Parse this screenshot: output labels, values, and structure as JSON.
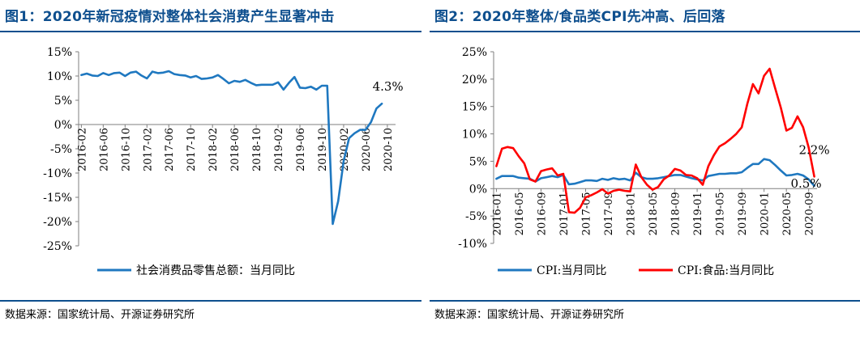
{
  "figures": [
    {
      "title": "图1：2020年新冠疫情对整体社会消费产生显著冲击",
      "source": "数据来源：国家统计局、开源证券研究所"
    },
    {
      "title": "图2：2020年整体/食品类CPI先冲高、后回落",
      "source": "数据来源：国家统计局、开源证券研究所"
    }
  ],
  "colors": {
    "title": "#0e4f8e",
    "blue": "#1f78c0",
    "red": "#ff0000",
    "axis": "#7f7f7f"
  },
  "chart_data": [
    {
      "type": "line",
      "title": "",
      "xlabel": "",
      "ylabel": "",
      "ylim": [
        -25,
        15
      ],
      "yticks": [
        15,
        10,
        5,
        0,
        -5,
        -10,
        -15,
        -20,
        -25
      ],
      "ytick_labels": [
        "15%",
        "10%",
        "5%",
        "0%",
        "-5%",
        "-10%",
        "-15%",
        "-20%",
        "-25%"
      ],
      "x_start": "2016-02",
      "x_end": "2020-11",
      "xtick_labels": [
        "2016-02",
        "2016-06",
        "2016-10",
        "2017-02",
        "2017-06",
        "2017-10",
        "2018-02",
        "2018-06",
        "2018-10",
        "2019-02",
        "2019-06",
        "2019-10",
        "2020-02",
        "2020-06",
        "2020-10"
      ],
      "legend_position": "bottom",
      "annotations": [
        {
          "text": "4.3%",
          "x": "2020-11",
          "y": 4.3
        }
      ],
      "series": [
        {
          "name": "社会消费品零售总额：当月同比",
          "color": "#1f78c0",
          "values": [
            10.2,
            10.5,
            10.1,
            10.0,
            10.6,
            10.2,
            10.6,
            10.7,
            10.0,
            10.7,
            10.9,
            10.1,
            9.5,
            10.9,
            10.6,
            10.7,
            11.0,
            10.4,
            10.2,
            10.1,
            9.7,
            10.0,
            9.4,
            9.5,
            9.7,
            10.2,
            9.4,
            8.5,
            9.0,
            8.8,
            9.2,
            8.6,
            8.1,
            8.2,
            8.2,
            8.2,
            8.7,
            7.2,
            8.6,
            9.8,
            7.6,
            7.5,
            7.8,
            7.2,
            8.0,
            8.0,
            -20.5,
            -15.8,
            -7.5,
            -2.8,
            -1.8,
            -1.1,
            -1.1,
            0.5,
            3.3,
            4.3
          ]
        }
      ]
    },
    {
      "type": "line",
      "title": "",
      "xlabel": "",
      "ylabel": "",
      "ylim": [
        -10,
        25
      ],
      "yticks": [
        25,
        20,
        15,
        10,
        5,
        0,
        -5,
        -10
      ],
      "ytick_labels": [
        "25%",
        "20%",
        "15%",
        "10%",
        "5%",
        "0%",
        "-5%",
        "-10%"
      ],
      "x_start": "2016-01",
      "x_end": "2020-10",
      "xtick_labels": [
        "2016-01",
        "2016-05",
        "2016-09",
        "2017-01",
        "2017-05",
        "2017-09",
        "2018-01",
        "2018-05",
        "2018-09",
        "2019-01",
        "2019-05",
        "2019-09",
        "2020-01",
        "2020-05",
        "2020-09"
      ],
      "legend_position": "bottom",
      "annotations": [
        {
          "text": "2.2%",
          "x": "2020-10",
          "y": 2.2
        },
        {
          "text": "0.5%",
          "x": "2020-10",
          "y": 0.5
        }
      ],
      "series": [
        {
          "name": "CPI:当月同比",
          "color": "#1f78c0",
          "values": [
            1.8,
            2.3,
            2.3,
            2.3,
            2.0,
            1.9,
            1.8,
            1.3,
            1.9,
            2.1,
            2.3,
            2.1,
            2.5,
            0.8,
            0.9,
            1.2,
            1.5,
            1.5,
            1.4,
            1.8,
            1.6,
            1.9,
            1.7,
            1.8,
            1.5,
            2.9,
            2.1,
            1.8,
            1.8,
            1.9,
            2.1,
            2.3,
            2.5,
            2.5,
            2.2,
            1.9,
            1.7,
            1.5,
            2.3,
            2.5,
            2.7,
            2.7,
            2.8,
            2.8,
            3.0,
            3.8,
            4.5,
            4.5,
            5.4,
            5.2,
            4.3,
            3.3,
            2.4,
            2.5,
            2.7,
            2.4,
            1.7,
            0.5
          ]
        },
        {
          "name": "CPI:食品:当月同比",
          "color": "#ff0000",
          "values": [
            4.1,
            7.3,
            7.6,
            7.4,
            5.9,
            4.6,
            1.7,
            1.3,
            3.2,
            3.5,
            3.7,
            2.4,
            2.7,
            -4.3,
            -4.4,
            -3.5,
            -1.6,
            -1.2,
            -0.7,
            -0.1,
            -0.9,
            -0.4,
            -0.2,
            -0.4,
            -0.5,
            4.4,
            2.1,
            0.7,
            -0.2,
            0.3,
            1.7,
            2.4,
            3.6,
            3.3,
            2.5,
            2.4,
            1.9,
            0.7,
            4.1,
            6.1,
            7.7,
            8.3,
            9.1,
            10.0,
            11.2,
            15.5,
            19.1,
            17.4,
            20.6,
            21.9,
            18.3,
            14.8,
            10.6,
            11.1,
            13.2,
            11.2,
            7.5,
            2.2
          ]
        }
      ]
    }
  ]
}
